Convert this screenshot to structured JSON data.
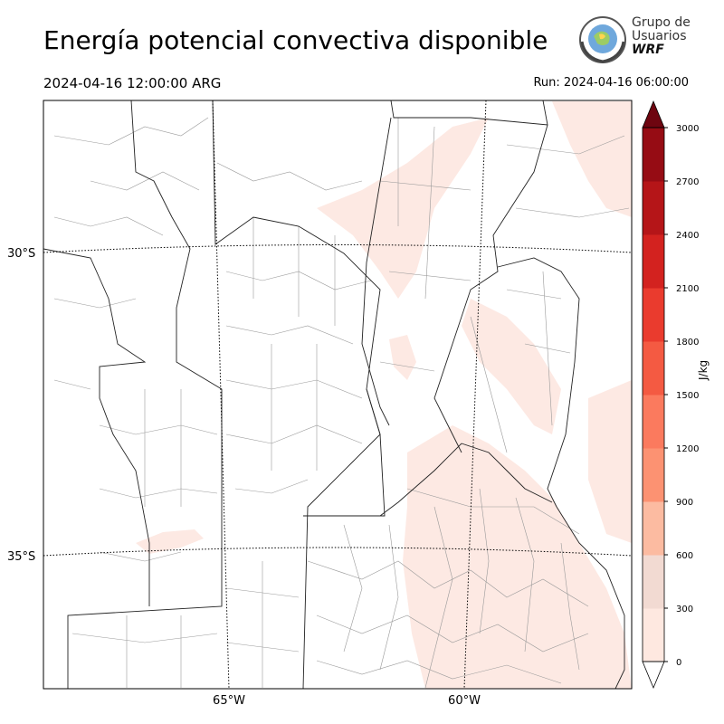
{
  "header": {
    "title": "Energía potencial convectiva disponible",
    "valid_time": "2024-04-16 12:00:00 ARG",
    "run_time": "Run: 2024-04-16 06:00:00"
  },
  "logo": {
    "line1": "Grupo de",
    "line2": "Usuarios",
    "line3": "WRF"
  },
  "map": {
    "lat_labels": [
      "30°S",
      "35°S"
    ],
    "lon_labels": [
      "65°W",
      "60°W"
    ]
  },
  "colorbar": {
    "label": "J/kg",
    "ticks": [
      "0",
      "300",
      "600",
      "900",
      "1200",
      "1500",
      "1800",
      "2100",
      "2400",
      "2700",
      "3000"
    ],
    "colors": [
      "#fee8e0",
      "#f2dad2",
      "#fcbba1",
      "#fc9272",
      "#fb7a5e",
      "#f45a42",
      "#ea3b2e",
      "#d3221f",
      "#b51518",
      "#960c14",
      "#6e0510"
    ],
    "extend": "both"
  }
}
